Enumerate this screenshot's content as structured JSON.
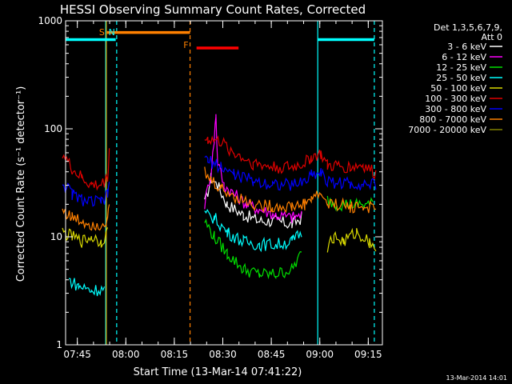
{
  "chart_data": {
    "type": "line",
    "title": "HESSI Observing Summary Count Rates, Corrected",
    "xlabel": "Start Time (13-Mar-14 07:41:22)",
    "ylabel": "Corrected Count Rate (s⁻¹ detector⁻¹)",
    "y_scale": "log",
    "ylim": [
      1,
      1000
    ],
    "xlim_minutes": [
      0,
      98
    ],
    "x_ticks": [
      {
        "label": "07:45",
        "minute": 3.63
      },
      {
        "label": "08:00",
        "minute": 18.63
      },
      {
        "label": "08:15",
        "minute": 33.63
      },
      {
        "label": "08:30",
        "minute": 48.63
      },
      {
        "label": "08:45",
        "minute": 63.63
      },
      {
        "label": "09:00",
        "minute": 78.63
      },
      {
        "label": "09:15",
        "minute": 93.63
      }
    ],
    "y_ticks": [
      {
        "label": "1",
        "value": 1
      },
      {
        "label": "10",
        "value": 10
      },
      {
        "label": "100",
        "value": 100
      },
      {
        "label": "1000",
        "value": 1000
      }
    ],
    "legend": {
      "position": "top-right",
      "header": [
        "Det 1,3,5,6,7,9,",
        "Att 0"
      ]
    },
    "series": [
      {
        "name": "3 - 6 keV",
        "color": "#ffffff",
        "x": [
          43,
          45,
          47,
          50,
          55,
          60,
          65,
          70,
          73
        ],
        "y": [
          20,
          35,
          30,
          20,
          16,
          14,
          14,
          13,
          15
        ]
      },
      {
        "name": "6 - 12 keV",
        "color": "#ff00ff",
        "x": [
          43,
          45,
          46,
          46.5,
          47,
          49,
          52,
          56,
          60,
          65,
          70,
          73
        ],
        "y": [
          20,
          40,
          80,
          140,
          50,
          30,
          25,
          20,
          18,
          16,
          15,
          16
        ]
      },
      {
        "name": "12 - 25 keV",
        "color": "#00e000",
        "x": [
          -1,
          3,
          10,
          13,
          43,
          46,
          50,
          55,
          60,
          65,
          70,
          73,
          78,
          80,
          81,
          84,
          90,
          95
        ],
        "y": [
          null,
          null,
          null,
          null,
          14,
          10,
          7,
          5,
          4.5,
          4.5,
          5,
          7,
          null,
          null,
          22,
          20,
          20,
          20
        ]
      },
      {
        "name": "25 - 50 keV",
        "color": "#00ffff",
        "x": [
          1,
          4,
          8,
          12,
          43,
          46,
          50,
          55,
          60,
          65,
          70,
          73
        ],
        "y": [
          4,
          3.5,
          3.2,
          3.3,
          16,
          15,
          11,
          9,
          8.5,
          8.5,
          9,
          11
        ]
      },
      {
        "name": "50 - 100 keV",
        "color": "#d8d800",
        "x": [
          -1,
          2,
          5,
          8,
          11,
          13,
          81,
          83,
          86,
          90,
          94,
          96
        ],
        "y": [
          11,
          10,
          9,
          10,
          9,
          11,
          8,
          10,
          9,
          11,
          9,
          8
        ]
      },
      {
        "name": "100 - 300 keV",
        "color": "#e00000",
        "x": [
          -1,
          2,
          5,
          8,
          11,
          13,
          13.5,
          43,
          44,
          48,
          52,
          58,
          64,
          70,
          74,
          76,
          79,
          81,
          84,
          88,
          92,
          96
        ],
        "y": [
          60,
          42,
          35,
          30,
          30,
          35,
          65,
          80,
          80,
          75,
          60,
          48,
          44,
          44,
          48,
          55,
          58,
          45,
          45,
          44,
          46,
          38
        ]
      },
      {
        "name": "300 - 800 keV",
        "color": "#0000ff",
        "x": [
          -1,
          2,
          5,
          8,
          11,
          13,
          13.5,
          43,
          44,
          48,
          52,
          58,
          64,
          70,
          74,
          76,
          79,
          81,
          84,
          88,
          92,
          96
        ],
        "y": [
          32,
          25,
          22,
          21,
          21,
          24,
          35,
          52,
          50,
          45,
          38,
          33,
          31,
          30,
          33,
          38,
          40,
          32,
          32,
          31,
          31,
          30
        ]
      },
      {
        "name": "800 - 7000 keV",
        "color": "#ff8000",
        "x": [
          -1,
          2,
          5,
          8,
          11,
          13,
          13.5,
          43,
          44,
          48,
          52,
          58,
          64,
          70,
          74,
          76,
          79,
          81,
          84,
          88,
          92,
          96
        ],
        "y": [
          18,
          15,
          14,
          13,
          13,
          15,
          18,
          40,
          35,
          28,
          24,
          20,
          19,
          19,
          20,
          23,
          25,
          20,
          20,
          19,
          19,
          18
        ]
      },
      {
        "name": "7000 - 20000 keV",
        "color": "#808000",
        "x": [],
        "y": []
      }
    ],
    "annotations": [
      {
        "label": "S",
        "color": "#ff8000",
        "x": 12.6
      },
      {
        "label": "N",
        "color": "#00ffff",
        "x": 15.8
      },
      {
        "label": "F",
        "color": "#ff8000",
        "x": 38.5
      }
    ],
    "flag_bars": [
      {
        "color": "#00ffff",
        "x_start": 0,
        "x_end": 15.5,
        "y": 670
      },
      {
        "color": "#ff8000",
        "x_start": 12.8,
        "x_end": 38.5,
        "y": 780
      },
      {
        "color": "#ff0000",
        "x_start": 40.5,
        "x_end": 53.5,
        "y": 560
      },
      {
        "color": "#00ffff",
        "x_start": 78.0,
        "x_end": 95.5,
        "y": 670
      }
    ],
    "vertical_lines": [
      {
        "color": "#00ffff",
        "style": "solid",
        "x": 12.4
      },
      {
        "color": "#d8a000",
        "style": "solid",
        "x": 12.6
      },
      {
        "color": "#00ffff",
        "style": "dashed",
        "x": 15.8
      },
      {
        "color": "#ff8000",
        "style": "dashed",
        "x": 38.5
      },
      {
        "color": "#00ffff",
        "style": "solid",
        "x": 78.0
      },
      {
        "color": "#00ffff",
        "style": "dashed",
        "x": 95.5
      }
    ],
    "footer_date": "13-Mar-2014 14:01"
  }
}
